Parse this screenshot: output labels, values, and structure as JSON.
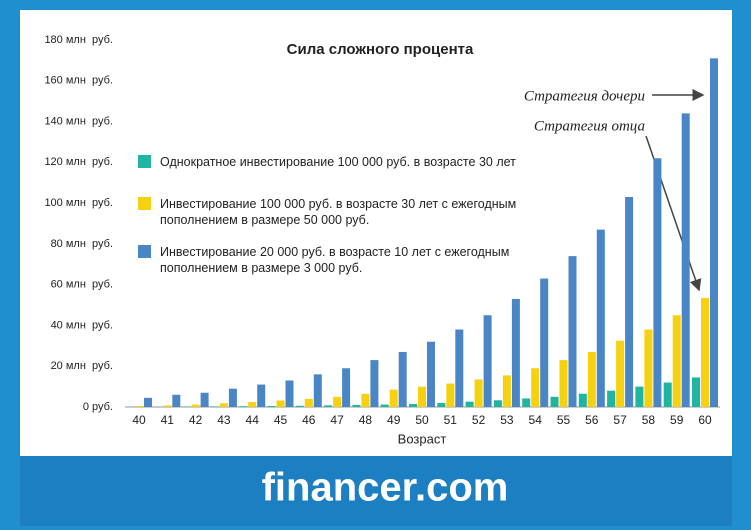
{
  "chart_data": {
    "type": "bar",
    "title": "Сила сложного процента",
    "x_label": "Возраст",
    "categories": [
      "40",
      "41",
      "42",
      "43",
      "44",
      "45",
      "46",
      "47",
      "48",
      "49",
      "50",
      "51",
      "52",
      "53",
      "54",
      "55",
      "56",
      "57",
      "58",
      "59",
      "60"
    ],
    "series": [
      {
        "name": "Однократное инвестирование 100 000 руб. в возрасте 30 лет",
        "color": "#1fb5a0",
        "values": [
          0.1,
          0.1,
          0.2,
          0.3,
          0.4,
          0.5,
          0.6,
          0.8,
          1,
          1.2,
          1.5,
          2,
          2.6,
          3.3,
          4.2,
          5,
          6.5,
          8,
          10,
          12,
          14.5
        ]
      },
      {
        "name": "Инвестирование 100 000 руб. в возрасте 30 лет с ежегодным пополнением  в размере 50 000 руб.",
        "color": "#f5d10f",
        "values": [
          0.5,
          0.8,
          1.2,
          1.8,
          2.4,
          3.2,
          4,
          5,
          6.5,
          8.5,
          10,
          11.5,
          13.5,
          15.5,
          19,
          23,
          27,
          32.5,
          38,
          45,
          53.5
        ]
      },
      {
        "name": "Инвестирование 20 000 руб. в возрасте 10 лет с ежегодным пополнением в размере 3 000 руб.",
        "color": "#4a86c5",
        "values": [
          4.5,
          6,
          7,
          9,
          11,
          13,
          16,
          19,
          23,
          27,
          32,
          38,
          45,
          53,
          63,
          74,
          87,
          103,
          122,
          144,
          171
        ]
      }
    ],
    "ylim": [
      0,
      180
    ],
    "yticks": [
      {
        "value": 0,
        "label": "0 руб."
      },
      {
        "value": 20,
        "label": "20 млн  руб."
      },
      {
        "value": 40,
        "label": "40 млн  руб."
      },
      {
        "value": 60,
        "label": "60 млн  руб."
      },
      {
        "value": 80,
        "label": "80 млн  руб."
      },
      {
        "value": 100,
        "label": "100 млн  руб."
      },
      {
        "value": 120,
        "label": "120 млн  руб."
      },
      {
        "value": 140,
        "label": "140 млн  руб."
      },
      {
        "value": 160,
        "label": "160 млн  руб."
      },
      {
        "value": 180,
        "label": "180 млн  руб."
      }
    ],
    "annotations": [
      "Стратегия дочери",
      "Стратегия отца"
    ],
    "brand": "financer.com"
  }
}
